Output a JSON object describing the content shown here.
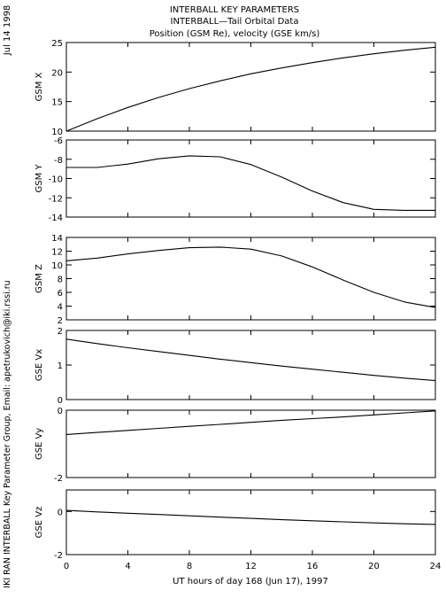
{
  "header": {
    "title_line1": "INTERBALL KEY PARAMETERS",
    "title_line2": "INTERBALL—Tail Orbital Data",
    "title_line3": "Position (GSM Re), velocity (GSE km/s)",
    "date_label": "Jul 14 1998",
    "credit": "IKI RAN INTERBALL Key Parameter Group, Email: apetrukovich@iki.rssi.ru"
  },
  "chart_data": [
    {
      "type": "line",
      "ylabel": "GSM X",
      "ylim": [
        10,
        25
      ],
      "yticks": [
        10,
        15,
        20,
        25
      ],
      "x": [
        0,
        2,
        4,
        6,
        8,
        10,
        12,
        14,
        16,
        18,
        20,
        22,
        24
      ],
      "series": [
        {
          "values": [
            10.0,
            12.1,
            14.0,
            15.7,
            17.2,
            18.5,
            19.7,
            20.7,
            21.6,
            22.4,
            23.1,
            23.7,
            24.2
          ]
        }
      ]
    },
    {
      "type": "line",
      "ylabel": "GSM Y",
      "ylim": [
        -14,
        -6
      ],
      "yticks": [
        -14,
        -12,
        -10,
        -8,
        -6
      ],
      "x": [
        0,
        2,
        4,
        6,
        8,
        10,
        12,
        14,
        16,
        18,
        20,
        22,
        24
      ],
      "series": [
        {
          "values": [
            -8.85,
            -8.85,
            -8.5,
            -7.95,
            -7.65,
            -7.75,
            -8.55,
            -9.85,
            -11.3,
            -12.5,
            -13.2,
            -13.3,
            -13.3
          ]
        }
      ]
    },
    {
      "type": "line",
      "ylabel": "GSM Z",
      "ylim": [
        2,
        14
      ],
      "yticks": [
        2,
        4,
        6,
        8,
        10,
        12,
        14
      ],
      "x": [
        0,
        2,
        4,
        6,
        8,
        10,
        12,
        14,
        16,
        18,
        20,
        22,
        24
      ],
      "series": [
        {
          "values": [
            10.6,
            11.0,
            11.6,
            12.1,
            12.5,
            12.6,
            12.3,
            11.3,
            9.7,
            7.8,
            6.0,
            4.6,
            3.8
          ]
        }
      ]
    },
    {
      "type": "line",
      "ylabel": "GSE Vx",
      "ylim": [
        0,
        2
      ],
      "yticks": [
        0,
        1,
        2
      ],
      "x": [
        0,
        2,
        4,
        6,
        8,
        10,
        12,
        14,
        16,
        18,
        20,
        22,
        24
      ],
      "series": [
        {
          "values": [
            1.75,
            1.62,
            1.5,
            1.39,
            1.28,
            1.17,
            1.07,
            0.97,
            0.88,
            0.79,
            0.7,
            0.62,
            0.55
          ]
        }
      ]
    },
    {
      "type": "line",
      "ylabel": "GSE Vy",
      "ylim": [
        -2,
        0
      ],
      "yticks": [
        -2,
        0
      ],
      "x": [
        0,
        2,
        4,
        6,
        8,
        10,
        12,
        14,
        16,
        18,
        20,
        22,
        24
      ],
      "series": [
        {
          "values": [
            -0.72,
            -0.66,
            -0.6,
            -0.54,
            -0.48,
            -0.42,
            -0.36,
            -0.3,
            -0.25,
            -0.2,
            -0.14,
            -0.08,
            -0.02
          ]
        }
      ]
    },
    {
      "type": "line",
      "ylabel": "GSE Vz",
      "ylim": [
        -2,
        1
      ],
      "yticks": [
        -2,
        0
      ],
      "x": [
        0,
        2,
        4,
        6,
        8,
        10,
        12,
        14,
        16,
        18,
        20,
        22,
        24
      ],
      "series": [
        {
          "values": [
            0.05,
            -0.02,
            -0.08,
            -0.14,
            -0.2,
            -0.26,
            -0.32,
            -0.38,
            -0.43,
            -0.48,
            -0.53,
            -0.57,
            -0.6
          ]
        }
      ]
    }
  ],
  "xaxis": {
    "label": "UT hours of day 168 (Jun 17), 1997",
    "xlim": [
      0,
      24
    ],
    "ticks": [
      0,
      4,
      8,
      12,
      16,
      20,
      24
    ]
  }
}
